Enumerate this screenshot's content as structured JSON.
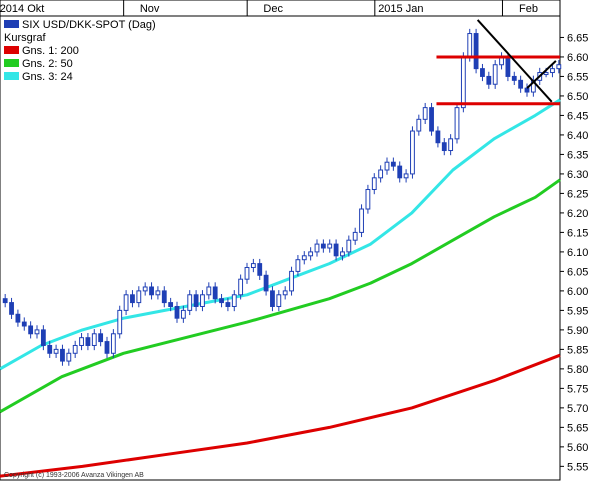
{
  "chart_data": {
    "type": "candlestick",
    "title": "",
    "legend_placement": "top-left",
    "legend": [
      {
        "label": "SIX USD/DKK-SPOT (Dag)",
        "color": "#1f3fb5"
      },
      {
        "label": "Kursgraf",
        "color": ""
      },
      {
        "label": "Gns. 1: 200",
        "color": "#dd0000"
      },
      {
        "label": "Gns. 2: 50",
        "color": "#22cc22"
      },
      {
        "label": "Gns. 3: 24",
        "color": "#33e6e6"
      }
    ],
    "x_tick_labels": [
      {
        "label": "2014 Okt",
        "day": 0
      },
      {
        "label": "Nov",
        "day": 31
      },
      {
        "label": "Dec",
        "day": 61
      },
      {
        "label": "2015 Jan",
        "day": 92
      },
      {
        "label": "Feb",
        "day": 123
      }
    ],
    "x_range_days": [
      0,
      136
    ],
    "y_ticks": [
      "6.65",
      "6.60",
      "6.55",
      "6.50",
      "6.45",
      "6.40",
      "6.35",
      "6.30",
      "6.25",
      "6.20",
      "6.15",
      "6.10",
      "6.05",
      "6.00",
      "5.95",
      "5.90",
      "5.85",
      "5.80",
      "5.75",
      "5.70",
      "5.65",
      "5.60",
      "5.55"
    ],
    "ylim": [
      5.515,
      6.705
    ],
    "y_axis_side": "right",
    "grid": false,
    "series": [
      {
        "name": "Kursgraf",
        "kind": "candles",
        "color": "#1f3fb5",
        "close_series_value_per_day": [
          5.97,
          5.94,
          5.92,
          5.91,
          5.89,
          5.9,
          5.86,
          5.84,
          5.85,
          5.82,
          5.84,
          5.86,
          5.88,
          5.86,
          5.89,
          5.87,
          5.84,
          5.89,
          5.95,
          5.99,
          5.97,
          6.0,
          6.01,
          5.99,
          6.0,
          5.97,
          5.96,
          5.93,
          5.95,
          5.99,
          5.96,
          5.99,
          6.01,
          5.98,
          5.97,
          5.96,
          5.99,
          6.03,
          6.06,
          6.07,
          6.04,
          6.0,
          5.96,
          5.99,
          6.0,
          6.05,
          6.08,
          6.09,
          6.1,
          6.12,
          6.11,
          6.12,
          6.09,
          6.1,
          6.13,
          6.15,
          6.21,
          6.26,
          6.29,
          6.31,
          6.33,
          6.32,
          6.29,
          6.3,
          6.41,
          6.44,
          6.47,
          6.41,
          6.38,
          6.36,
          6.39,
          6.47,
          6.6,
          6.66,
          6.57,
          6.55,
          6.53,
          6.58,
          6.6,
          6.55,
          6.54,
          6.52,
          6.51,
          6.54,
          6.56,
          6.56,
          6.57,
          6.58
        ]
      },
      {
        "name": "Gns. 1: 200",
        "kind": "line",
        "color": "#dd0000",
        "day": [
          0,
          20,
          40,
          60,
          80,
          100,
          120,
          136
        ],
        "values": [
          5.525,
          5.55,
          5.58,
          5.61,
          5.65,
          5.7,
          5.77,
          5.835
        ]
      },
      {
        "name": "Gns. 2: 50",
        "kind": "line",
        "color": "#22cc22",
        "day": [
          0,
          15,
          30,
          45,
          60,
          70,
          80,
          90,
          100,
          110,
          120,
          130,
          136
        ],
        "values": [
          5.69,
          5.78,
          5.84,
          5.88,
          5.92,
          5.95,
          5.98,
          6.02,
          6.07,
          6.13,
          6.19,
          6.24,
          6.285
        ]
      },
      {
        "name": "Gns. 3: 24",
        "kind": "line",
        "color": "#33e6e6",
        "day": [
          0,
          10,
          20,
          30,
          40,
          50,
          60,
          70,
          80,
          90,
          100,
          110,
          120,
          130,
          136
        ],
        "values": [
          5.8,
          5.86,
          5.9,
          5.93,
          5.95,
          5.97,
          5.99,
          6.03,
          6.07,
          6.12,
          6.2,
          6.31,
          6.39,
          6.45,
          6.49
        ]
      }
    ],
    "annotations": [
      {
        "kind": "hline",
        "color": "#dd0000",
        "value": 6.6,
        "from_day": 106,
        "to_day": 136
      },
      {
        "kind": "hline",
        "color": "#dd0000",
        "value": 6.48,
        "from_day": 106,
        "to_day": 136
      },
      {
        "kind": "trendline",
        "color": "#000000",
        "from": {
          "day": 116,
          "value": 6.695
        },
        "to": {
          "day": 134,
          "value": 6.485
        }
      },
      {
        "kind": "trendline",
        "color": "#000000",
        "from": {
          "day": 128,
          "value": 6.52
        },
        "to": {
          "day": 135,
          "value": 6.59
        }
      }
    ],
    "copyright": "Copyright (c) 1993-2006 Avanza Vikingen AB"
  }
}
